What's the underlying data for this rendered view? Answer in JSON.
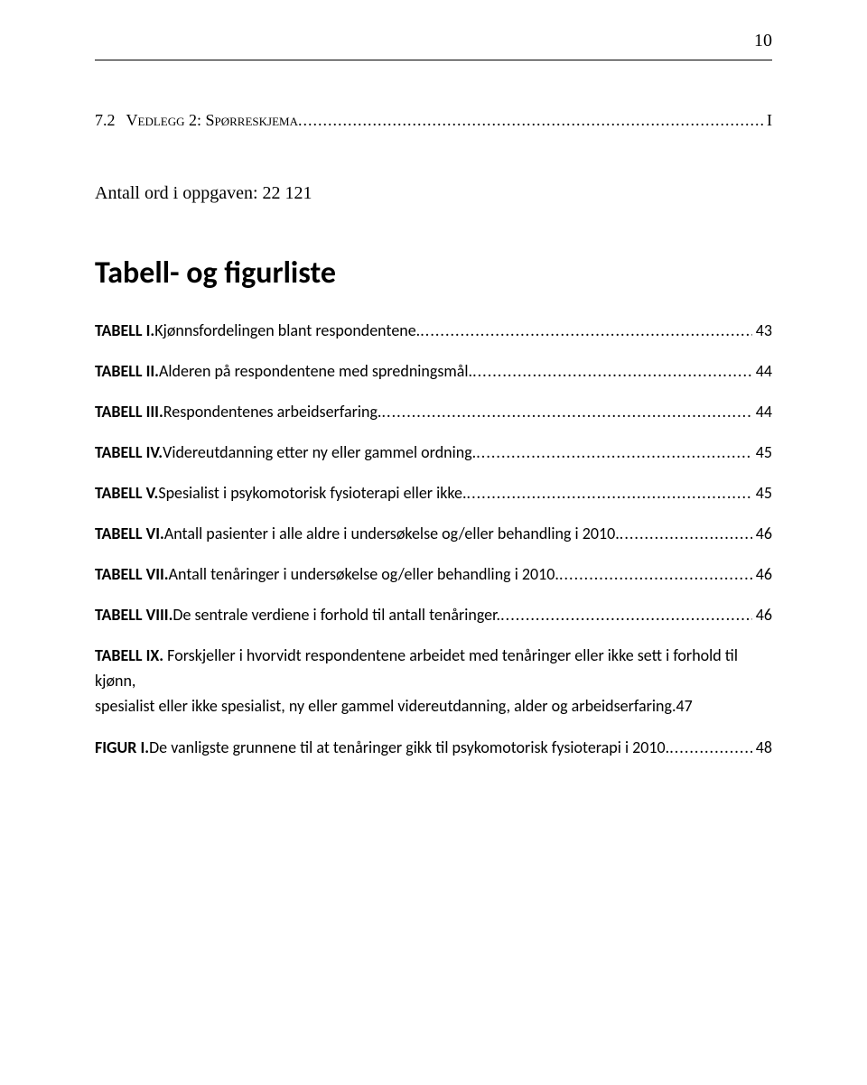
{
  "page_number": "10",
  "section72": {
    "number": "7.2",
    "title": "Vedlegg 2: Spørreskjema",
    "page": "I"
  },
  "wordcount_line": "Antall ord i oppgaven: 22 121",
  "heading": "Tabell- og figurliste",
  "entries": [
    {
      "label": "TABELL I.",
      "desc": " Kjønnsfordelingen blant respondentene.",
      "page": "43"
    },
    {
      "label": "TABELL II.",
      "desc": " Alderen på respondentene med spredningsmål.",
      "page": "44"
    },
    {
      "label": "TABELL III.",
      "desc": " Respondentenes arbeidserfaring.",
      "page": "44"
    },
    {
      "label": "TABELL IV.",
      "desc": " Videreutdanning etter ny eller gammel ordning.",
      "page": "45"
    },
    {
      "label": "TABELL V.",
      "desc": " Spesialist i psykomotorisk fysioterapi eller ikke. ",
      "page": "45"
    },
    {
      "label": "TABELL VI.",
      "desc": " Antall pasienter i alle aldre i undersøkelse og/eller behandling i 2010.",
      "page": "46"
    },
    {
      "label": "TABELL VII.",
      "desc": " Antall tenåringer i undersøkelse og/eller behandling i 2010. ",
      "page": "46"
    },
    {
      "label": "TABELL VIII.",
      "desc": " De sentrale verdiene i forhold til antall tenåringer.",
      "page": "46"
    },
    {
      "label": "TABELL IX.",
      "desc_wrap": " Forskjeller i hvorvidt respondentene arbeidet med tenåringer eller ikke sett i forhold til kjønn,",
      "desc_last": "spesialist eller ikke spesialist, ny eller gammel videreutdanning, alder og arbeidserfaring.",
      "page": "47"
    },
    {
      "label": "FIGUR I.",
      "desc": " De vanligste grunnene til at tenåringer gikk til psykomotorisk fysioterapi i 2010.",
      "page": "48"
    }
  ]
}
